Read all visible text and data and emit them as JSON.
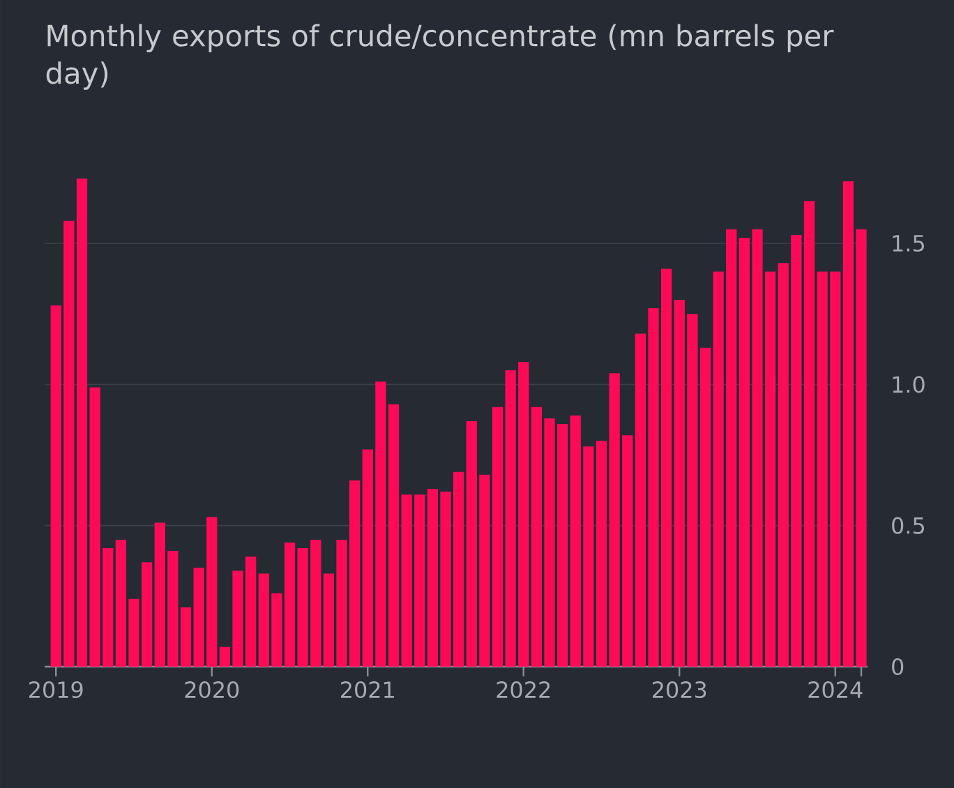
{
  "chart_data": {
    "type": "bar",
    "title": "Monthly exports of crude/concentrate (mn barrels per day)",
    "x": [
      "2019-01",
      "2019-02",
      "2019-03",
      "2019-04",
      "2019-05",
      "2019-06",
      "2019-07",
      "2019-08",
      "2019-09",
      "2019-10",
      "2019-11",
      "2019-12",
      "2020-01",
      "2020-02",
      "2020-03",
      "2020-04",
      "2020-05",
      "2020-06",
      "2020-07",
      "2020-08",
      "2020-09",
      "2020-10",
      "2020-11",
      "2020-12",
      "2021-01",
      "2021-02",
      "2021-03",
      "2021-04",
      "2021-05",
      "2021-06",
      "2021-07",
      "2021-08",
      "2021-09",
      "2021-10",
      "2021-11",
      "2021-12",
      "2022-01",
      "2022-02",
      "2022-03",
      "2022-04",
      "2022-05",
      "2022-06",
      "2022-07",
      "2022-08",
      "2022-09",
      "2022-10",
      "2022-11",
      "2022-12",
      "2023-01",
      "2023-02",
      "2023-03",
      "2023-04",
      "2023-05",
      "2023-06",
      "2023-07",
      "2023-08",
      "2023-09",
      "2023-10",
      "2023-11",
      "2023-12",
      "2024-01",
      "2024-02",
      "2024-03"
    ],
    "values": [
      1.28,
      1.58,
      1.73,
      0.99,
      0.42,
      0.45,
      0.24,
      0.37,
      0.51,
      0.41,
      0.21,
      0.35,
      0.53,
      0.07,
      0.34,
      0.39,
      0.33,
      0.26,
      0.44,
      0.42,
      0.45,
      0.33,
      0.45,
      0.66,
      0.77,
      1.01,
      0.93,
      0.61,
      0.61,
      0.63,
      0.62,
      0.69,
      0.87,
      0.68,
      0.92,
      1.05,
      1.08,
      0.92,
      0.88,
      0.86,
      0.89,
      0.78,
      0.8,
      1.04,
      0.82,
      1.18,
      1.27,
      1.41,
      1.3,
      1.25,
      1.13,
      1.4,
      1.55,
      1.52,
      1.55,
      1.4,
      1.43,
      1.53,
      1.65,
      1.4,
      1.4,
      1.72,
      1.55
    ],
    "color": "#ff0a57",
    "xlim": [
      "2018-12-05",
      "2024-03-16"
    ],
    "xticks": [
      "2019",
      "2020",
      "2021",
      "2022",
      "2023",
      "2024",
      {
        "value": "2024-03",
        "label": null
      }
    ],
    "ylim": [
      0,
      1.73
    ],
    "yticks": [
      0,
      0.5,
      {
        "value": 1,
        "label": "1.0"
      },
      1.5
    ],
    "grid": "y"
  }
}
